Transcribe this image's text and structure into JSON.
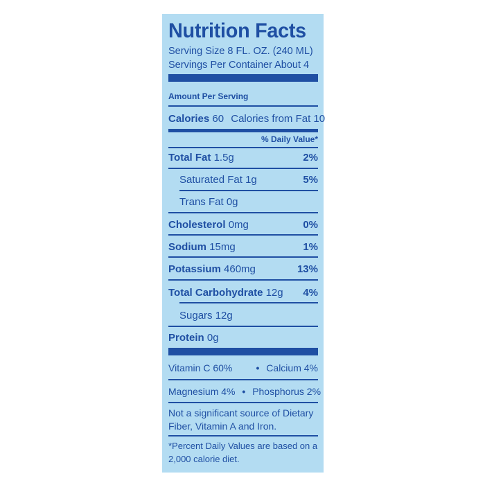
{
  "label": {
    "title": "Nutrition Facts",
    "serving_size": "Serving Size 8 FL. OZ. (240 ML)",
    "servings_per_container": "Servings Per Container About 4",
    "amount_per_serving": "Amount Per Serving",
    "calories_label": "Calories",
    "calories_value": "60",
    "calories_from_fat": "Calories from Fat 10",
    "daily_value_header": "% Daily Value*",
    "nutrients": [
      {
        "name": "Total Fat",
        "amount": "1.5g",
        "dv": "2%"
      },
      {
        "name": "Saturated Fat",
        "amount": "1g",
        "dv": "5%"
      },
      {
        "name": "Trans Fat",
        "amount": "0g",
        "dv": ""
      },
      {
        "name": "Cholesterol",
        "amount": "0mg",
        "dv": "0%"
      },
      {
        "name": "Sodium",
        "amount": "15mg",
        "dv": "1%"
      },
      {
        "name": "Potassium",
        "amount": "460mg",
        "dv": "13%"
      },
      {
        "name": "Total Carbohydrate",
        "amount": "12g",
        "dv": "4%"
      },
      {
        "name": "Sugars",
        "amount": "12g",
        "dv": ""
      },
      {
        "name": "Protein",
        "amount": "0g",
        "dv": ""
      }
    ],
    "vitamins": {
      "vitamin_c": "Vitamin C 60%",
      "calcium": "Calcium 4%",
      "magnesium": "Magnesium 4%",
      "phosphorus": "Phosphorus 2%",
      "separator": "•"
    },
    "note_insignificant": "Not a significant source of Dietary Fiber, Vitamin A and Iron.",
    "note_daily_values": "*Percent Daily Values are based on a 2,000 calorie diet.",
    "colors": {
      "ink": "#1f4fa3",
      "background": "#b3dcf2"
    }
  }
}
